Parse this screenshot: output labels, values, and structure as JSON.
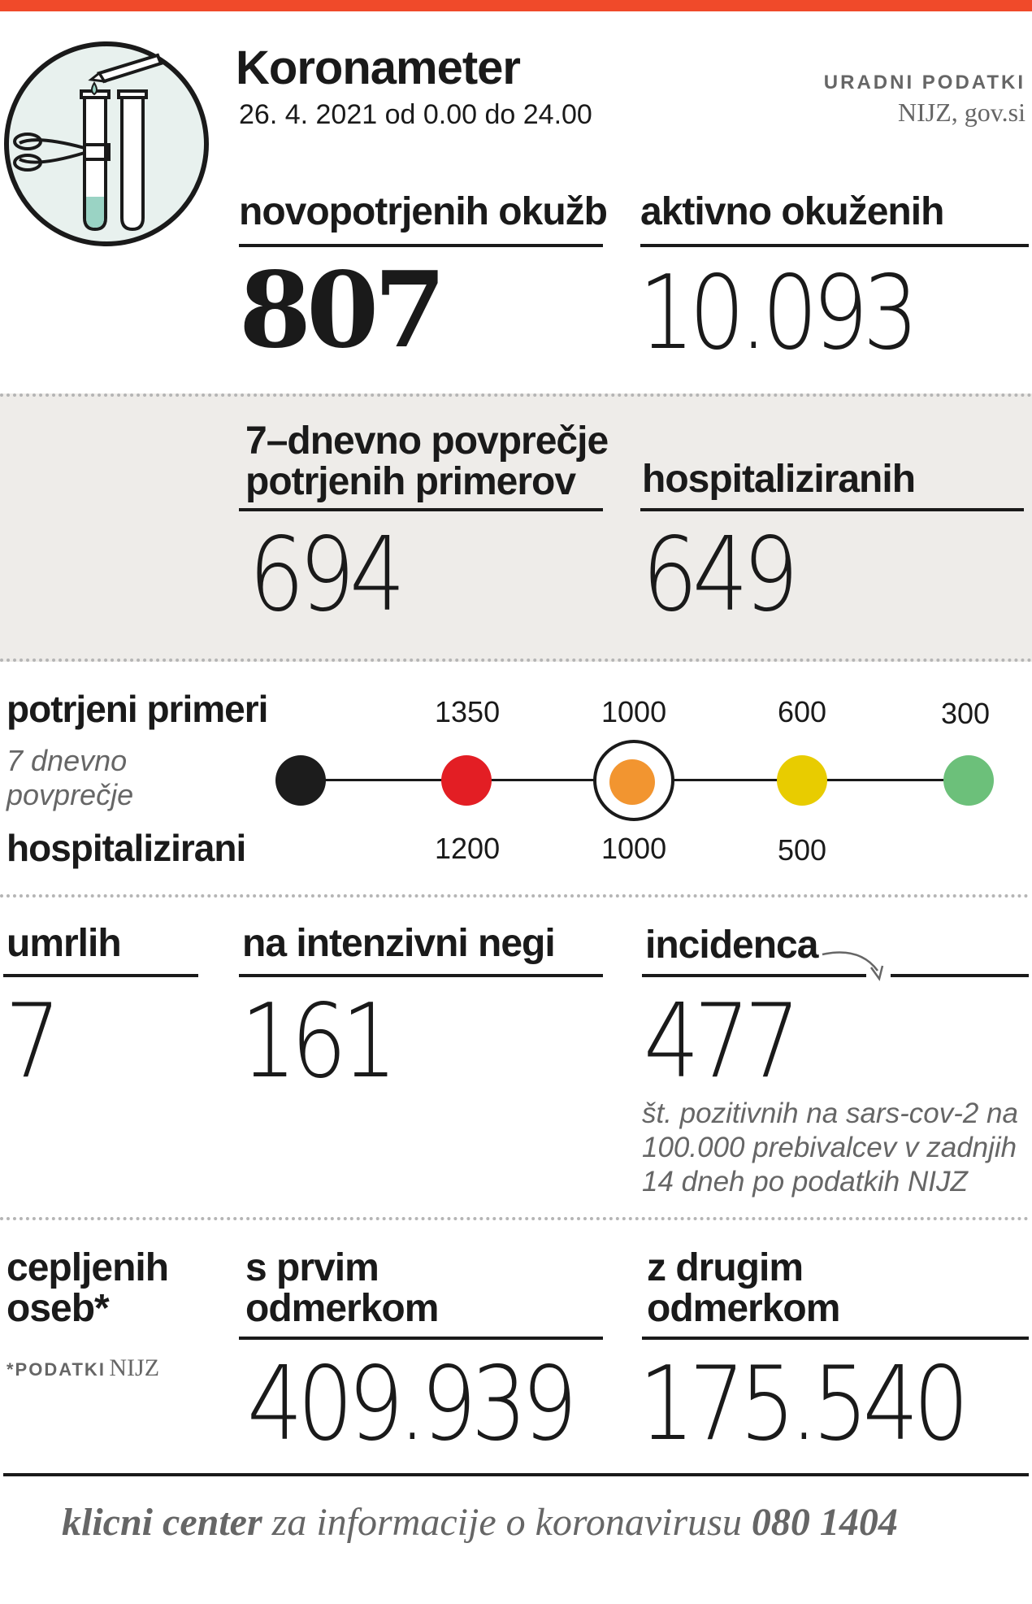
{
  "header": {
    "title": "Koronameter",
    "date": "26. 4. 2021 od 0.00 do 24.00",
    "source_label": "URADNI PODATKI",
    "source": "NIJZ, gov.si"
  },
  "stats": {
    "new_infections": {
      "label": "novopotrjenih okužb",
      "value": "807"
    },
    "active": {
      "label": "aktivno okuženih",
      "value": "10.093"
    },
    "avg7_line1": "7–dnevno povprečje",
    "avg7_line2": "potrjenih primerov",
    "avg7_value": "694",
    "hospitalized": {
      "label": "hospitaliziranih",
      "value": "649"
    }
  },
  "scale": {
    "label_top": "potrjeni primeri",
    "sub_line1": "7 dnevno",
    "sub_line2": "povprečje",
    "label_bottom": "hospitalizirani",
    "top_values": [
      "1350",
      "1000",
      "600",
      "300"
    ],
    "bottom_values": [
      "1200",
      "1000",
      "500"
    ],
    "dot_colors": [
      "#1c1c1c",
      "#e31e24",
      "#f29530",
      "#e8cc00",
      "#6cc07a"
    ],
    "active_index": 2
  },
  "outcomes": {
    "deaths": {
      "label": "umrlih",
      "value": "7"
    },
    "icu": {
      "label": "na intenzivni negi",
      "value": "161"
    },
    "incidence": {
      "label": "incidenca",
      "value": "477"
    },
    "incidence_note_1": "št. pozitivnih na sars-cov-2 na",
    "incidence_note_2": "100.000 prebivalcev v zadnjih",
    "incidence_note_3": "14 dneh po podatkih NIJZ"
  },
  "vaccination": {
    "label_line1": "cepljenih",
    "label_line2": "oseb*",
    "footnote_a": "*PODATKI",
    "footnote_b": "NIJZ",
    "first_line1": "s prvim",
    "first_line2": "odmerkom",
    "first_value": "409.939",
    "second_line1": "z drugim",
    "second_line2": "odmerkom",
    "second_value": "175.540"
  },
  "footer": {
    "part1": "klicni center",
    "part2": "za informacije o koronavirusu",
    "part3": "080 1404"
  },
  "colors": {
    "accent": "#f04a2a",
    "gray_band": "#eeece9"
  }
}
